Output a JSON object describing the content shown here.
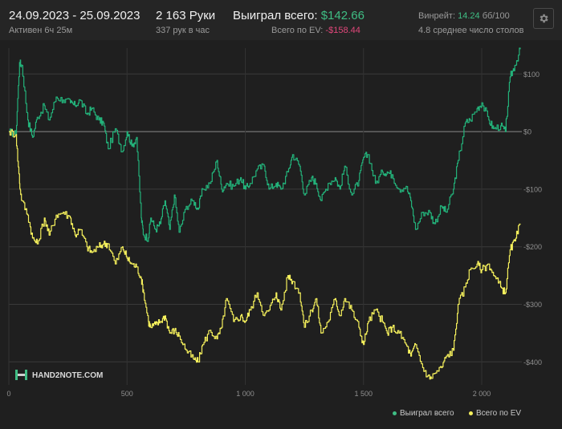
{
  "header": {
    "date_range": "24.09.2023 - 25.09.2023",
    "active": "Активен 6ч 25м",
    "hands": "2 163 Руки",
    "hands_per_hour": "337 рук в час",
    "won_label": "Выиграл всего:",
    "won_value": "$142.66",
    "ev_label": "Всего по EV:",
    "ev_value": "-$158.44",
    "winrate_label": "Винрейт:",
    "winrate_value": "14.24",
    "winrate_unit": "бб/100",
    "avg_tables": "4.8 среднее число столов"
  },
  "watermark": "HAND2NOTE.COM",
  "icons": {
    "settings": "gear-icon",
    "logo": "hand2note-logo-icon"
  },
  "colors": {
    "won": "#23b27a",
    "ev": "#f5f05c",
    "background": "#1f1f1f"
  },
  "chart_data": {
    "type": "line",
    "xlabel": "",
    "ylabel": "",
    "xlim": [
      0,
      2163
    ],
    "ylim": [
      -440,
      145
    ],
    "x_ticks": [
      0,
      500,
      1000,
      1500,
      2000
    ],
    "x_tick_labels": [
      "0",
      "500",
      "1 000",
      "1 500",
      "2 000"
    ],
    "y_ticks": [
      100,
      0,
      -100,
      -200,
      -300,
      -400
    ],
    "y_tick_labels": [
      "$100",
      "$0",
      "-$100",
      "-$200",
      "-$300",
      "-$400"
    ],
    "grid": true,
    "legend_position": "bottom-right",
    "series": [
      {
        "name": "Выиграл всего",
        "color": "#23b27a",
        "x": [
          0,
          30,
          45,
          55,
          80,
          100,
          120,
          150,
          170,
          200,
          230,
          260,
          280,
          300,
          330,
          350,
          380,
          400,
          420,
          450,
          480,
          500,
          520,
          540,
          560,
          570,
          590,
          600,
          620,
          640,
          660,
          680,
          700,
          720,
          750,
          780,
          800,
          820,
          850,
          880,
          900,
          920,
          950,
          980,
          1000,
          1020,
          1050,
          1080,
          1100,
          1130,
          1150,
          1180,
          1200,
          1230,
          1250,
          1280,
          1300,
          1320,
          1350,
          1380,
          1400,
          1420,
          1450,
          1480,
          1500,
          1520,
          1550,
          1580,
          1600,
          1620,
          1650,
          1680,
          1700,
          1720,
          1750,
          1780,
          1800,
          1830,
          1850,
          1880,
          1900,
          1930,
          1950,
          1980,
          2000,
          2030,
          2050,
          2080,
          2100,
          2120,
          2140,
          2163
        ],
        "y": [
          0,
          -5,
          120,
          115,
          20,
          -10,
          25,
          45,
          20,
          60,
          55,
          50,
          45,
          55,
          30,
          40,
          20,
          15,
          -30,
          5,
          -35,
          0,
          -25,
          -10,
          -150,
          -180,
          -185,
          -150,
          -170,
          -160,
          -120,
          -170,
          -110,
          -175,
          -130,
          -120,
          -135,
          -100,
          -90,
          -50,
          -100,
          -90,
          -95,
          -80,
          -100,
          -90,
          -65,
          -60,
          -100,
          -90,
          -100,
          -70,
          -40,
          -60,
          -110,
          -80,
          -90,
          -120,
          -90,
          -80,
          -100,
          -60,
          -110,
          -85,
          -45,
          -40,
          -90,
          -70,
          -70,
          -75,
          -100,
          -95,
          -120,
          -170,
          -140,
          -140,
          -160,
          -130,
          -140,
          -100,
          -50,
          15,
          20,
          40,
          50,
          20,
          5,
          10,
          0,
          95,
          115,
          143
        ]
      },
      {
        "name": "Всего по EV",
        "color": "#f5f05c",
        "x": [
          0,
          30,
          45,
          55,
          80,
          100,
          120,
          150,
          170,
          200,
          230,
          260,
          280,
          300,
          330,
          350,
          380,
          400,
          420,
          450,
          480,
          500,
          520,
          540,
          560,
          570,
          590,
          600,
          620,
          640,
          660,
          680,
          700,
          720,
          750,
          780,
          800,
          820,
          850,
          880,
          900,
          920,
          950,
          980,
          1000,
          1020,
          1050,
          1080,
          1100,
          1130,
          1150,
          1180,
          1200,
          1230,
          1250,
          1280,
          1300,
          1320,
          1350,
          1380,
          1400,
          1420,
          1450,
          1480,
          1500,
          1520,
          1550,
          1580,
          1600,
          1620,
          1650,
          1680,
          1700,
          1720,
          1750,
          1780,
          1800,
          1830,
          1850,
          1880,
          1900,
          1930,
          1950,
          1980,
          2000,
          2030,
          2050,
          2080,
          2100,
          2120,
          2140,
          2163
        ],
        "y": [
          0,
          -5,
          -90,
          -120,
          -145,
          -185,
          -195,
          -150,
          -180,
          -145,
          -140,
          -150,
          -180,
          -170,
          -200,
          -210,
          -200,
          -195,
          -195,
          -230,
          -200,
          -220,
          -230,
          -235,
          -255,
          -280,
          -330,
          -340,
          -335,
          -330,
          -320,
          -350,
          -345,
          -355,
          -380,
          -395,
          -400,
          -370,
          -345,
          -360,
          -340,
          -290,
          -330,
          -320,
          -330,
          -310,
          -280,
          -320,
          -310,
          -280,
          -310,
          -250,
          -260,
          -280,
          -340,
          -310,
          -290,
          -350,
          -330,
          -290,
          -320,
          -290,
          -310,
          -340,
          -370,
          -330,
          -310,
          -330,
          -350,
          -340,
          -350,
          -370,
          -390,
          -370,
          -410,
          -430,
          -420,
          -410,
          -390,
          -380,
          -300,
          -270,
          -240,
          -230,
          -240,
          -230,
          -250,
          -270,
          -280,
          -205,
          -190,
          -160
        ]
      }
    ]
  }
}
